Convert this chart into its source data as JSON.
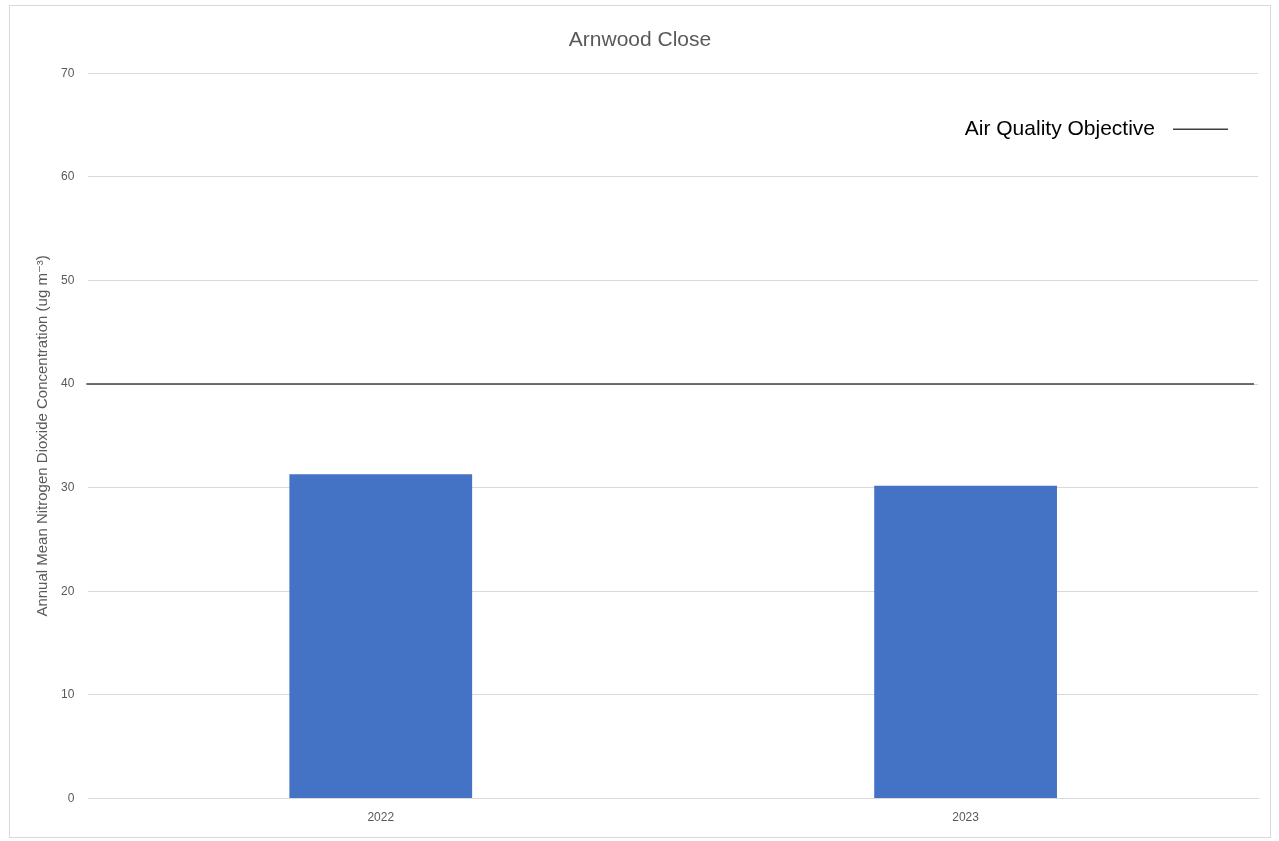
{
  "chart_data": {
    "type": "bar",
    "title": "Arnwood Close",
    "ylabel": "Annual Mean Nitrogen Dioxide Concentration (ug m⁻³)",
    "categories": [
      "2022",
      "2023"
    ],
    "values": [
      31.3,
      30.2
    ],
    "color": "#4472c4",
    "ylim": [
      0,
      70
    ],
    "yticks": [
      0,
      10,
      20,
      30,
      40,
      50,
      60,
      70
    ],
    "grid": "y",
    "ref_lines": [
      {
        "axis": "y",
        "value": 40,
        "label": "Air Quality Objective",
        "color": "#404040"
      }
    ],
    "legend": "top right"
  }
}
